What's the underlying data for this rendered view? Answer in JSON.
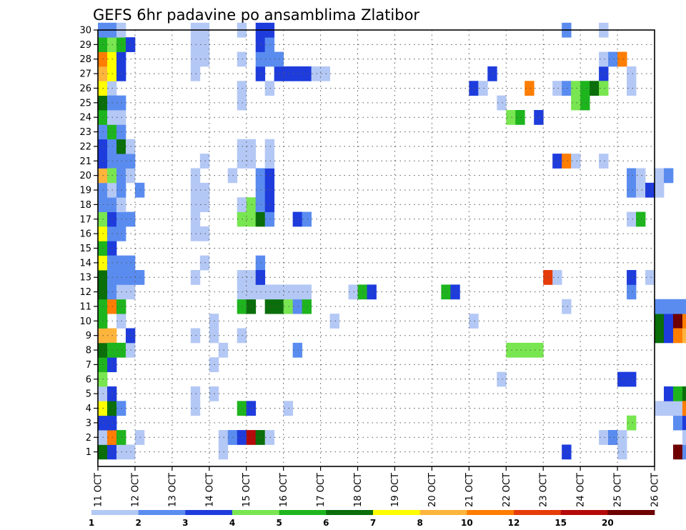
{
  "chart_data": {
    "type": "heatmap",
    "title": "GEFS 6hr padavine po ansamblima Zlatibor",
    "xlabel": "",
    "ylabel": "",
    "x_tick_labels": [
      "11 OCT",
      "12 OCT",
      "13 OCT",
      "14 OCT",
      "15 OCT",
      "16 OCT",
      "17 OCT",
      "18 OCT",
      "19 OCT",
      "20 OCT",
      "21 OCT",
      "22 OCT",
      "23 OCT",
      "24 OCT",
      "25 OCT",
      "26 OCT"
    ],
    "y_tick_labels": [
      "1",
      "2",
      "3",
      "4",
      "5",
      "6",
      "7",
      "8",
      "9",
      "10",
      "11",
      "12",
      "13",
      "14",
      "15",
      "16",
      "17",
      "18",
      "19",
      "20",
      "21",
      "22",
      "23",
      "24",
      "25",
      "26",
      "27",
      "28",
      "29",
      "30"
    ],
    "y_range": [
      0,
      30
    ],
    "time_steps_per_day": 4,
    "grid": true,
    "legend": {
      "placement": "bottom",
      "labels": [
        "1",
        "2",
        "3",
        "4",
        "5",
        "6",
        "7",
        "8",
        "10",
        "12",
        "15",
        "20"
      ],
      "colors": [
        "#b4c8f5",
        "#5a8cf0",
        "#1e3cdc",
        "#78e650",
        "#1eb41e",
        "#0a6e0a",
        "#ffff00",
        "#ffb43c",
        "#ff7d00",
        "#e63c0a",
        "#b40a0a",
        "#6e0000"
      ]
    },
    "cells": [
      [
        0,
        0,
        5
      ],
      [
        0,
        1,
        0
      ],
      [
        0,
        2,
        2
      ],
      [
        0,
        3,
        6
      ],
      [
        0,
        4,
        0
      ],
      [
        0,
        5,
        3
      ],
      [
        0,
        6,
        4
      ],
      [
        0,
        7,
        5
      ],
      [
        0,
        8,
        7
      ],
      [
        0,
        9,
        4
      ],
      [
        0,
        10,
        4
      ],
      [
        0,
        11,
        5
      ],
      [
        0,
        12,
        5
      ],
      [
        0,
        13,
        6
      ],
      [
        0,
        14,
        4
      ],
      [
        0,
        15,
        6
      ],
      [
        0,
        16,
        3
      ],
      [
        0,
        17,
        1
      ],
      [
        0,
        18,
        1
      ],
      [
        0,
        19,
        7
      ],
      [
        0,
        20,
        2
      ],
      [
        0,
        21,
        2
      ],
      [
        0,
        22,
        1
      ],
      [
        0,
        23,
        4
      ],
      [
        0,
        24,
        5
      ],
      [
        0,
        25,
        6
      ],
      [
        0,
        26,
        7
      ],
      [
        0,
        27,
        8
      ],
      [
        0,
        28,
        4
      ],
      [
        0,
        29,
        1
      ],
      [
        1,
        0,
        2
      ],
      [
        1,
        1,
        9
      ],
      [
        1,
        3,
        1
      ],
      [
        1,
        4,
        6
      ],
      [
        1,
        6,
        2
      ],
      [
        1,
        8,
        7
      ],
      [
        1,
        12,
        1
      ],
      [
        1,
        14,
        2
      ],
      [
        1,
        20,
        1
      ],
      [
        1,
        24,
        1
      ],
      [
        1,
        25,
        0
      ],
      [
        1,
        26,
        6
      ],
      [
        1,
        27,
        6
      ],
      [
        1,
        28,
        3
      ],
      [
        1,
        29,
        1
      ],
      [
        1,
        1,
        8
      ],
      [
        1,
        2,
        2
      ],
      [
        1,
        3,
        5
      ],
      [
        1,
        4,
        2
      ],
      [
        1,
        7,
        4
      ],
      [
        1,
        10,
        8
      ],
      [
        1,
        11,
        1
      ],
      [
        1,
        13,
        1
      ],
      [
        1,
        15,
        1
      ],
      [
        1,
        16,
        2
      ],
      [
        1,
        17,
        1
      ],
      [
        1,
        18,
        0
      ],
      [
        1,
        19,
        3
      ],
      [
        1,
        21,
        1
      ],
      [
        1,
        22,
        4
      ],
      [
        1,
        23,
        0
      ],
      [
        1,
        24,
        1
      ],
      [
        2,
        0,
        0
      ],
      [
        2,
        1,
        4
      ],
      [
        2,
        3,
        1
      ],
      [
        2,
        7,
        4
      ],
      [
        2,
        9,
        0
      ],
      [
        2,
        10,
        4
      ],
      [
        2,
        11,
        0
      ],
      [
        2,
        12,
        1
      ],
      [
        2,
        13,
        1
      ],
      [
        2,
        15,
        1
      ],
      [
        2,
        16,
        1
      ],
      [
        2,
        17,
        0
      ],
      [
        2,
        18,
        1
      ],
      [
        2,
        19,
        1
      ],
      [
        2,
        20,
        1
      ],
      [
        2,
        21,
        5
      ],
      [
        2,
        22,
        1
      ],
      [
        2,
        23,
        0
      ],
      [
        2,
        24,
        1
      ],
      [
        2,
        26,
        2
      ],
      [
        2,
        27,
        2
      ],
      [
        2,
        28,
        4
      ],
      [
        2,
        29,
        0
      ],
      [
        3,
        0,
        0
      ],
      [
        3,
        7,
        0
      ],
      [
        3,
        8,
        2
      ],
      [
        3,
        11,
        0
      ],
      [
        3,
        12,
        1
      ],
      [
        3,
        13,
        1
      ],
      [
        3,
        16,
        1
      ],
      [
        3,
        19,
        0
      ],
      [
        3,
        20,
        1
      ],
      [
        3,
        21,
        0
      ],
      [
        3,
        28,
        2
      ],
      [
        4,
        1,
        0
      ],
      [
        4,
        12,
        1
      ],
      [
        4,
        18,
        1
      ],
      [
        10,
        3,
        0
      ],
      [
        10,
        4,
        0
      ],
      [
        10,
        8,
        0
      ],
      [
        10,
        12,
        0
      ],
      [
        10,
        15,
        0
      ],
      [
        10,
        16,
        0
      ],
      [
        10,
        17,
        0
      ],
      [
        10,
        18,
        0
      ],
      [
        10,
        19,
        0
      ],
      [
        10,
        26,
        0
      ],
      [
        10,
        27,
        0
      ],
      [
        10,
        28,
        0
      ],
      [
        10,
        29,
        0
      ],
      [
        11,
        13,
        0
      ],
      [
        11,
        15,
        0
      ],
      [
        11,
        17,
        0
      ],
      [
        11,
        18,
        0
      ],
      [
        11,
        20,
        0
      ],
      [
        11,
        27,
        0
      ],
      [
        11,
        28,
        0
      ],
      [
        11,
        29,
        0
      ],
      [
        12,
        4,
        0
      ],
      [
        12,
        6,
        0
      ],
      [
        12,
        8,
        0
      ],
      [
        12,
        9,
        0
      ],
      [
        13,
        7,
        0
      ],
      [
        13,
        1,
        0
      ],
      [
        13,
        0,
        0
      ],
      [
        14,
        1,
        0
      ],
      [
        14,
        1,
        1
      ],
      [
        14,
        19,
        0
      ],
      [
        15,
        1,
        2
      ],
      [
        15,
        3,
        4
      ],
      [
        15,
        10,
        4
      ],
      [
        15,
        16,
        3
      ],
      [
        15,
        17,
        0
      ],
      [
        15,
        11,
        0
      ],
      [
        15,
        12,
        0
      ],
      [
        15,
        8,
        0
      ],
      [
        15,
        20,
        0
      ],
      [
        15,
        21,
        0
      ],
      [
        15,
        24,
        0
      ],
      [
        15,
        25,
        0
      ],
      [
        15,
        27,
        0
      ],
      [
        15,
        29,
        0
      ],
      [
        16,
        1,
        10
      ],
      [
        16,
        3,
        2
      ],
      [
        16,
        10,
        5
      ],
      [
        16,
        16,
        3
      ],
      [
        16,
        11,
        0
      ],
      [
        16,
        12,
        0
      ],
      [
        16,
        17,
        3
      ],
      [
        16,
        20,
        0
      ],
      [
        16,
        21,
        0
      ],
      [
        17,
        1,
        5
      ],
      [
        17,
        11,
        0
      ],
      [
        17,
        16,
        5
      ],
      [
        17,
        17,
        1
      ],
      [
        17,
        18,
        1
      ],
      [
        17,
        19,
        1
      ],
      [
        17,
        13,
        1
      ],
      [
        17,
        12,
        2
      ],
      [
        17,
        26,
        2
      ],
      [
        17,
        27,
        1
      ],
      [
        17,
        28,
        2
      ],
      [
        17,
        29,
        2
      ],
      [
        18,
        1,
        0
      ],
      [
        18,
        10,
        5
      ],
      [
        18,
        11,
        0
      ],
      [
        18,
        16,
        1
      ],
      [
        18,
        17,
        2
      ],
      [
        18,
        18,
        2
      ],
      [
        18,
        19,
        2
      ],
      [
        18,
        20,
        0
      ],
      [
        18,
        21,
        0
      ],
      [
        18,
        25,
        0
      ],
      [
        18,
        27,
        1
      ],
      [
        18,
        28,
        1
      ],
      [
        18,
        29,
        2
      ],
      [
        19,
        10,
        5
      ],
      [
        19,
        11,
        0
      ],
      [
        19,
        26,
        2
      ],
      [
        19,
        27,
        1
      ],
      [
        20,
        3,
        0
      ],
      [
        20,
        10,
        3
      ],
      [
        20,
        11,
        0
      ],
      [
        20,
        26,
        2
      ],
      [
        21,
        10,
        1
      ],
      [
        21,
        11,
        0
      ],
      [
        21,
        16,
        2
      ],
      [
        21,
        7,
        1
      ],
      [
        21,
        26,
        2
      ],
      [
        22,
        16,
        1
      ],
      [
        22,
        10,
        4
      ],
      [
        22,
        11,
        0
      ],
      [
        22,
        26,
        2
      ],
      [
        23,
        26,
        0
      ],
      [
        24,
        26,
        0
      ],
      [
        25,
        9,
        0
      ],
      [
        27,
        11,
        0
      ],
      [
        28,
        11,
        4
      ],
      [
        29,
        11,
        2
      ],
      [
        37,
        11,
        4
      ],
      [
        38,
        11,
        2
      ],
      [
        40,
        9,
        0
      ],
      [
        40,
        25,
        2
      ],
      [
        41,
        25,
        0
      ],
      [
        42,
        26,
        2
      ],
      [
        43,
        5,
        0
      ],
      [
        43,
        24,
        0
      ],
      [
        44,
        7,
        3
      ],
      [
        44,
        23,
        3
      ],
      [
        45,
        7,
        3
      ],
      [
        45,
        23,
        4
      ],
      [
        46,
        7,
        3
      ],
      [
        46,
        25,
        8
      ],
      [
        47,
        7,
        3
      ],
      [
        47,
        23,
        2
      ],
      [
        48,
        12,
        9
      ],
      [
        49,
        20,
        2
      ],
      [
        49,
        25,
        0
      ],
      [
        49,
        12,
        0
      ],
      [
        50,
        20,
        8
      ],
      [
        50,
        29,
        1
      ],
      [
        50,
        0,
        2
      ],
      [
        50,
        10,
        0
      ],
      [
        50,
        25,
        1
      ],
      [
        51,
        25,
        3
      ],
      [
        51,
        20,
        0
      ],
      [
        51,
        24,
        3
      ],
      [
        52,
        25,
        4
      ],
      [
        52,
        24,
        4
      ],
      [
        53,
        25,
        5
      ],
      [
        54,
        1,
        0
      ],
      [
        54,
        26,
        2
      ],
      [
        54,
        27,
        0
      ],
      [
        54,
        20,
        0
      ],
      [
        54,
        29,
        0
      ],
      [
        54,
        25,
        3
      ],
      [
        55,
        1,
        2
      ],
      [
        55,
        1,
        1
      ],
      [
        55,
        27,
        1
      ],
      [
        56,
        1,
        0
      ],
      [
        56,
        5,
        2
      ],
      [
        56,
        27,
        8
      ],
      [
        56,
        0,
        0
      ],
      [
        57,
        5,
        2
      ],
      [
        57,
        2,
        3
      ],
      [
        57,
        11,
        1
      ],
      [
        57,
        25,
        0
      ],
      [
        57,
        26,
        0
      ],
      [
        57,
        16,
        0
      ],
      [
        57,
        18,
        1
      ],
      [
        57,
        12,
        2
      ],
      [
        57,
        19,
        1
      ],
      [
        58,
        16,
        4
      ],
      [
        58,
        18,
        0
      ],
      [
        58,
        19,
        0
      ],
      [
        59,
        12,
        0
      ],
      [
        59,
        18,
        2
      ],
      [
        60,
        19,
        0
      ],
      [
        60,
        18,
        0
      ],
      [
        60,
        8,
        5
      ],
      [
        60,
        9,
        5
      ],
      [
        60,
        10,
        1
      ],
      [
        60,
        3,
        0
      ],
      [
        61,
        19,
        1
      ],
      [
        61,
        8,
        2
      ],
      [
        61,
        9,
        2
      ],
      [
        61,
        10,
        1
      ],
      [
        61,
        3,
        0
      ],
      [
        61,
        4,
        2
      ],
      [
        62,
        9,
        11
      ],
      [
        62,
        8,
        8
      ],
      [
        62,
        10,
        1
      ],
      [
        62,
        2,
        1
      ],
      [
        62,
        3,
        0
      ],
      [
        62,
        4,
        4
      ],
      [
        62,
        0,
        11
      ],
      [
        63,
        8,
        7
      ],
      [
        63,
        9,
        8
      ],
      [
        63,
        10,
        1
      ],
      [
        63,
        4,
        5
      ],
      [
        63,
        2,
        2
      ],
      [
        63,
        3,
        8
      ],
      [
        63,
        0,
        1
      ],
      [
        63,
        1,
        0
      ],
      [
        64,
        10,
        2
      ],
      [
        64,
        4,
        3
      ],
      [
        64,
        0,
        1
      ],
      [
        64,
        1,
        0
      ],
      [
        65,
        10,
        3
      ],
      [
        65,
        4,
        4
      ],
      [
        65,
        0,
        1
      ],
      [
        66,
        10,
        5
      ],
      [
        66,
        4,
        2
      ],
      [
        66,
        8,
        2
      ],
      [
        66,
        11,
        0
      ],
      [
        66,
        3,
        2
      ],
      [
        66,
        1,
        0
      ],
      [
        66,
        0,
        1
      ],
      [
        66,
        -1,
        9
      ],
      [
        67,
        10,
        11
      ],
      [
        67,
        4,
        4
      ],
      [
        67,
        3,
        0
      ],
      [
        67,
        -1,
        9
      ],
      [
        67,
        25,
        5
      ],
      [
        67,
        27,
        4
      ]
    ]
  }
}
